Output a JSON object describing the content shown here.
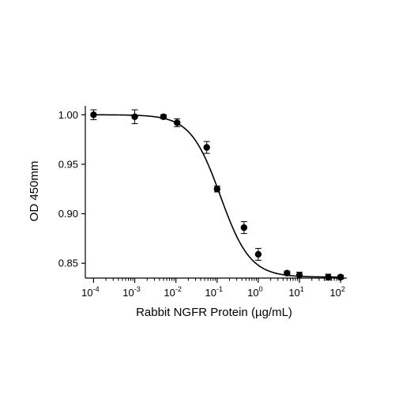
{
  "chart_data": {
    "type": "scatter",
    "title": "",
    "xlabel": "Rabbit NGFR Protein (µg/mL)",
    "ylabel": "OD 450mm",
    "xscale": "log",
    "xlim": [
      0.0001,
      100
    ],
    "ylim": [
      0.835,
      1.0
    ],
    "grid": false,
    "legend": "none",
    "x_ticks": [
      {
        "base": "10",
        "exp": "-4",
        "value": 0.0001
      },
      {
        "base": "10",
        "exp": "-3",
        "value": 0.001
      },
      {
        "base": "10",
        "exp": "-2",
        "value": 0.01
      },
      {
        "base": "10",
        "exp": "-1",
        "value": 0.1
      },
      {
        "base": "10",
        "exp": "0",
        "value": 1
      },
      {
        "base": "10",
        "exp": "1",
        "value": 10
      },
      {
        "base": "10",
        "exp": "2",
        "value": 100
      }
    ],
    "y_ticks": [
      {
        "label": "0.85",
        "value": 0.85
      },
      {
        "label": "0.90",
        "value": 0.9
      },
      {
        "label": "0.95",
        "value": 0.95
      },
      {
        "label": "1.00",
        "value": 1.0
      }
    ],
    "series": [
      {
        "x": [
          0.0001,
          0.001,
          0.005,
          0.0107,
          0.056,
          0.1,
          0.45,
          1.0,
          5.0,
          10.0,
          50.0,
          100.0
        ],
        "y": [
          1.0,
          0.998,
          0.998,
          0.992,
          0.967,
          0.925,
          0.886,
          0.859,
          0.84,
          0.838,
          0.836,
          0.836
        ],
        "err": [
          0.005,
          0.007,
          0.002,
          0.004,
          0.006,
          0.003,
          0.006,
          0.006,
          0.002,
          0.003,
          0.003,
          0.002
        ],
        "color": "#000000"
      }
    ],
    "fit_curve": {
      "model": "4PL",
      "top": 1.0,
      "bottom": 0.836,
      "ec50": 0.12,
      "hill": 1.2,
      "color": "#000000"
    }
  }
}
